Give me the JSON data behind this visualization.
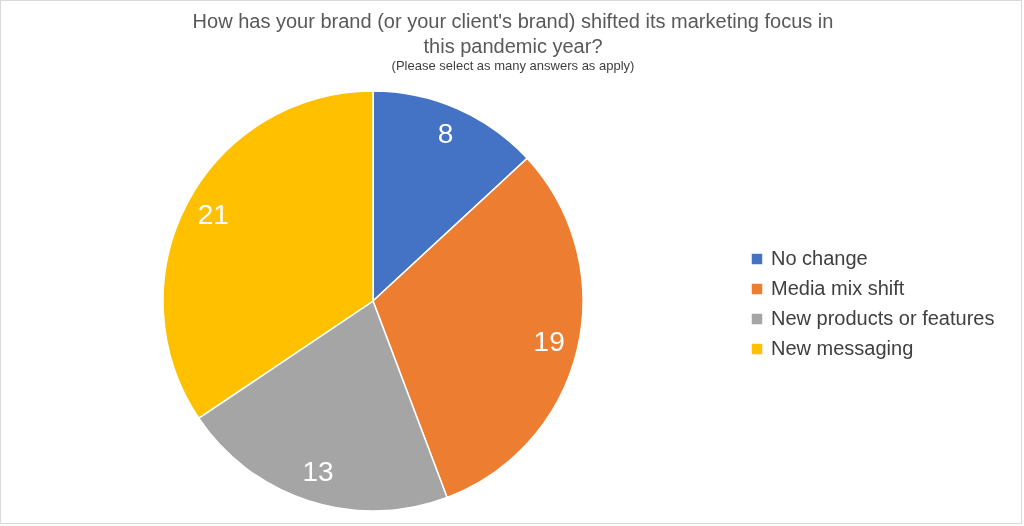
{
  "chart_data": {
    "type": "pie",
    "title": "How has your brand (or your client's brand) shifted its marketing focus in this pandemic year?",
    "subtitle": "(Please select as many answers as apply)",
    "categories": [
      "No change",
      "Media mix shift",
      "New products or features",
      "New messaging"
    ],
    "values": [
      8,
      19,
      13,
      21
    ],
    "colors": [
      "#4472c4",
      "#ed7d31",
      "#a5a5a5",
      "#ffc000"
    ],
    "data_labels": true,
    "legend": "right"
  }
}
